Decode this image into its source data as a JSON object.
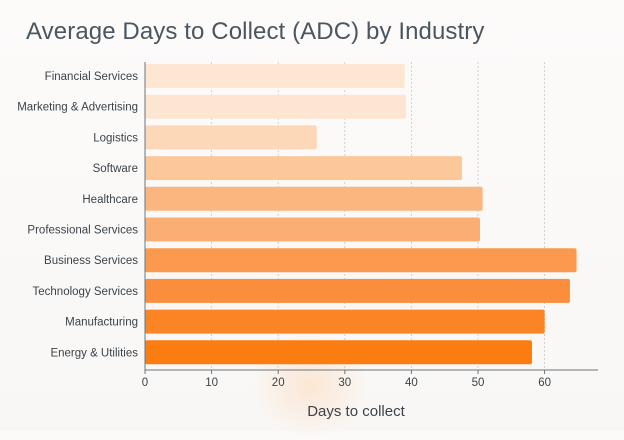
{
  "chart_data": {
    "type": "bar",
    "orientation": "horizontal",
    "title": "Average Days to Collect (ADC) by Industry",
    "xlabel": "Days to collect",
    "ylabel": "",
    "categories": [
      "Financial Services",
      "Marketing & Advertising",
      "Logistics",
      "Software",
      "Healthcare",
      "Professional Services",
      "Business Services",
      "Technology Services",
      "Manufacturing",
      "Energy & Utilities"
    ],
    "values": [
      39,
      39.2,
      25.8,
      47.6,
      50.7,
      50.3,
      64.8,
      63.8,
      60,
      58.1
    ],
    "xlim": [
      0,
      68
    ],
    "xticks": [
      0,
      10,
      20,
      30,
      40,
      50,
      60
    ],
    "grid": "vertical dashed",
    "colors": [
      "#fde7d3",
      "#fde6d1",
      "#fcd8b8",
      "#fcc89a",
      "#fbb680",
      "#fbae74",
      "#fb9a4e",
      "#fb8e3c",
      "#fb8424",
      "#fb7c10"
    ]
  }
}
